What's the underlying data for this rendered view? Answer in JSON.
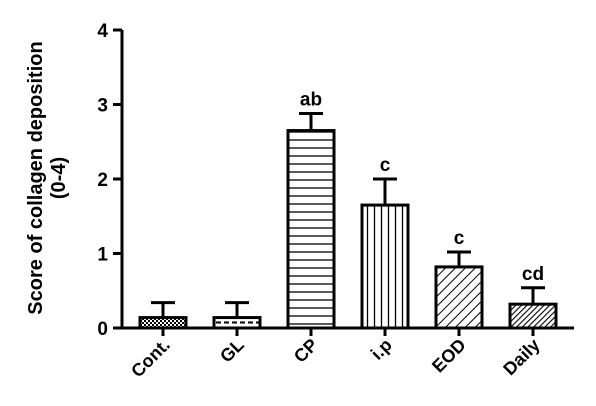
{
  "chart_data": {
    "type": "bar",
    "title": "",
    "xlabel": "",
    "ylabel_line1": "Score of collagen deposition",
    "ylabel_line2": "(0-4)",
    "ylim": [
      0,
      4
    ],
    "yticks": [
      "0",
      "1",
      "2",
      "3",
      "4"
    ],
    "grid": false,
    "categories": [
      "Cont.",
      "GL",
      "CP",
      "i.p",
      "EOD",
      "Daily"
    ],
    "values": [
      0.14,
      0.14,
      2.65,
      1.65,
      0.82,
      0.32
    ],
    "errors": [
      0.2,
      0.2,
      0.23,
      0.35,
      0.2,
      0.22
    ],
    "annotations": [
      "",
      "",
      "ab",
      "c",
      "c",
      "cd"
    ],
    "patterns": [
      "checker",
      "dashed-horizontal",
      "horizontal-lines",
      "vertical-lines",
      "diagonal-forward",
      "diagonal-dense"
    ],
    "colors": {
      "stroke": "#000000",
      "fill": "#ffffff"
    }
  }
}
